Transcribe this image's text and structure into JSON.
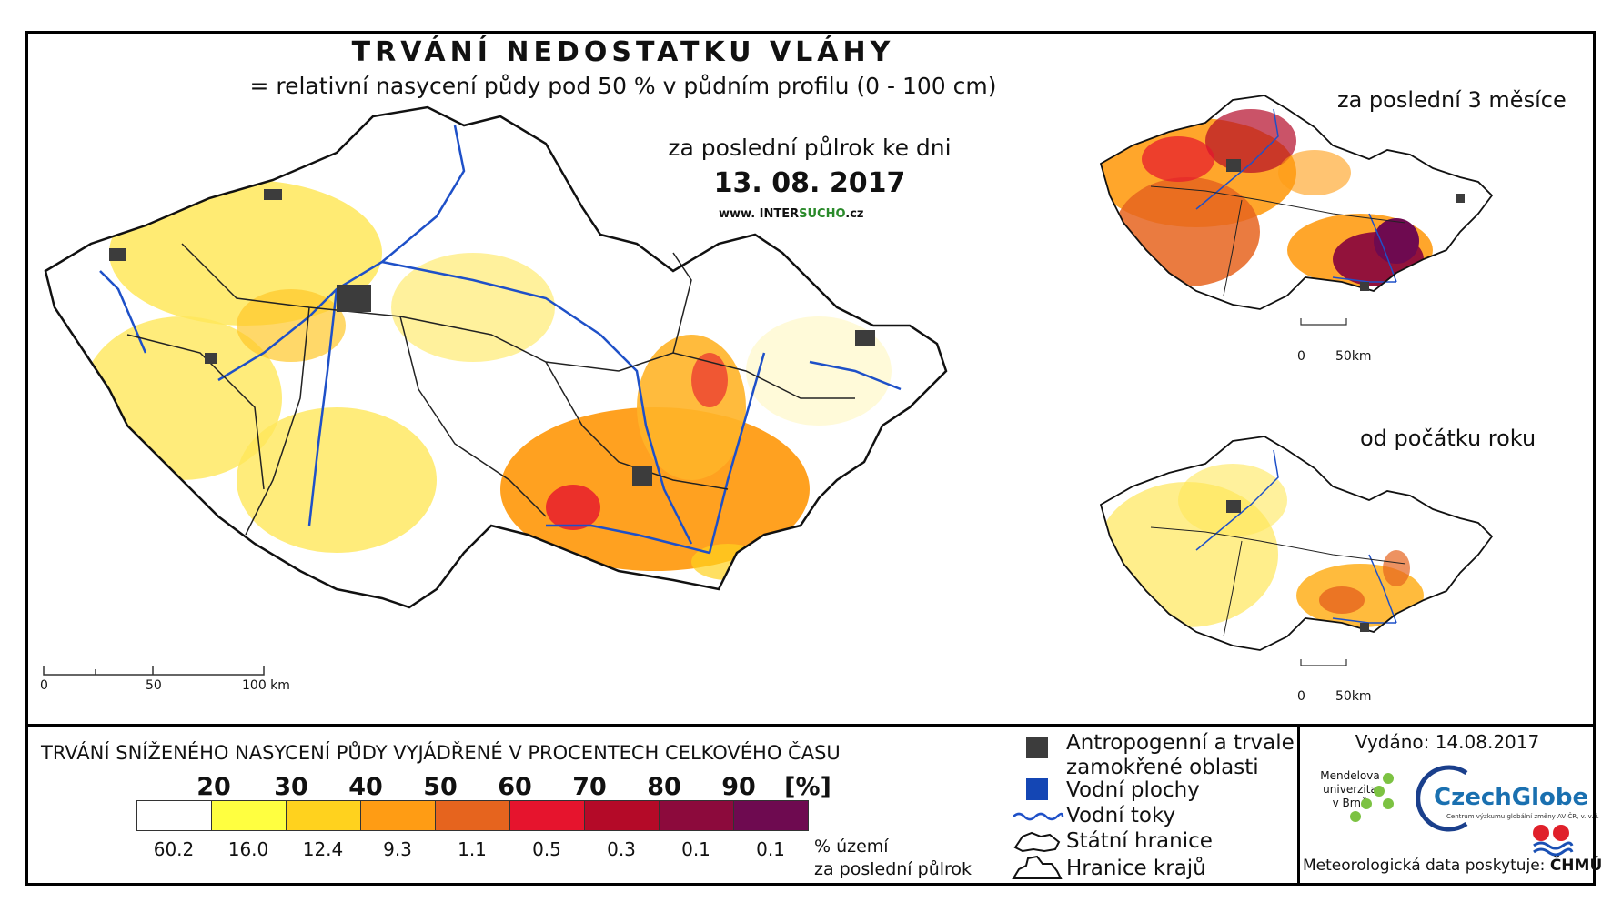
{
  "title": "TRVÁNÍ NEDOSTATKU VLÁHY",
  "subtitle": "= relativní nasycení půdy pod 50 % v půdním profilu (0 - 100 cm)",
  "period_label": "za poslední půlrok ke dni",
  "date": "13. 08. 2017",
  "url": {
    "prefix": "www. INTER",
    "mid": "SUCHO",
    "suffix": ".cz"
  },
  "main_scale": {
    "ticks": [
      "0",
      "50",
      "100 km"
    ]
  },
  "insets": [
    {
      "label": "za poslední 3 měsíce",
      "scale": [
        "0",
        "50km"
      ]
    },
    {
      "label": "od počátku roku",
      "scale": [
        "0",
        "50km"
      ]
    }
  ],
  "legend": {
    "title": "TRVÁNÍ SNÍŽENÉHO NASYCENÍ PŮDY VYJÁDŘENÉ V PROCENTECH CELKOVÉHO ČASU",
    "class_breaks": [
      "20",
      "30",
      "40",
      "50",
      "60",
      "70",
      "80",
      "90"
    ],
    "unit": "[%]",
    "colors": [
      "#ffffff",
      "#ffff40",
      "#ffd21e",
      "#ff9c14",
      "#e6641e",
      "#e6142d",
      "#b40a28",
      "#8c0a3c",
      "#6e0a50"
    ],
    "area_percent": [
      "60.2",
      "16.0",
      "12.4",
      "9.3",
      "1.1",
      "0.5",
      "0.3",
      "0.1",
      "0.1"
    ],
    "area_label_1": "% území",
    "area_label_2": "za poslední půlrok",
    "items": [
      {
        "label_1": "Antropogenní a trvale",
        "label_2": "zamokřené oblasti",
        "icon": "dark-square",
        "color": "#3c3c3c"
      },
      {
        "label": "Vodní plochy",
        "icon": "blue-square",
        "color": "#1446b4"
      },
      {
        "label": "Vodní toky",
        "icon": "wavy-line",
        "color": "#1e50c8"
      },
      {
        "label": "Státní hranice",
        "icon": "country-outline"
      },
      {
        "label": "Hranice krajů",
        "icon": "region-outline"
      }
    ]
  },
  "issued": "Vydáno: 14.08.2017",
  "logos": {
    "mendel_1": "Mendelova",
    "mendel_2": "univerzita",
    "mendel_3": "v Brně",
    "czechglobe": "CzechGlobe",
    "czechglobe_sub": "Centrum výzkumu globální změny AV ČR, v. v. i."
  },
  "meteo_prefix": "Meteorologická data poskytuje:",
  "meteo_provider": "ČHMÚ"
}
